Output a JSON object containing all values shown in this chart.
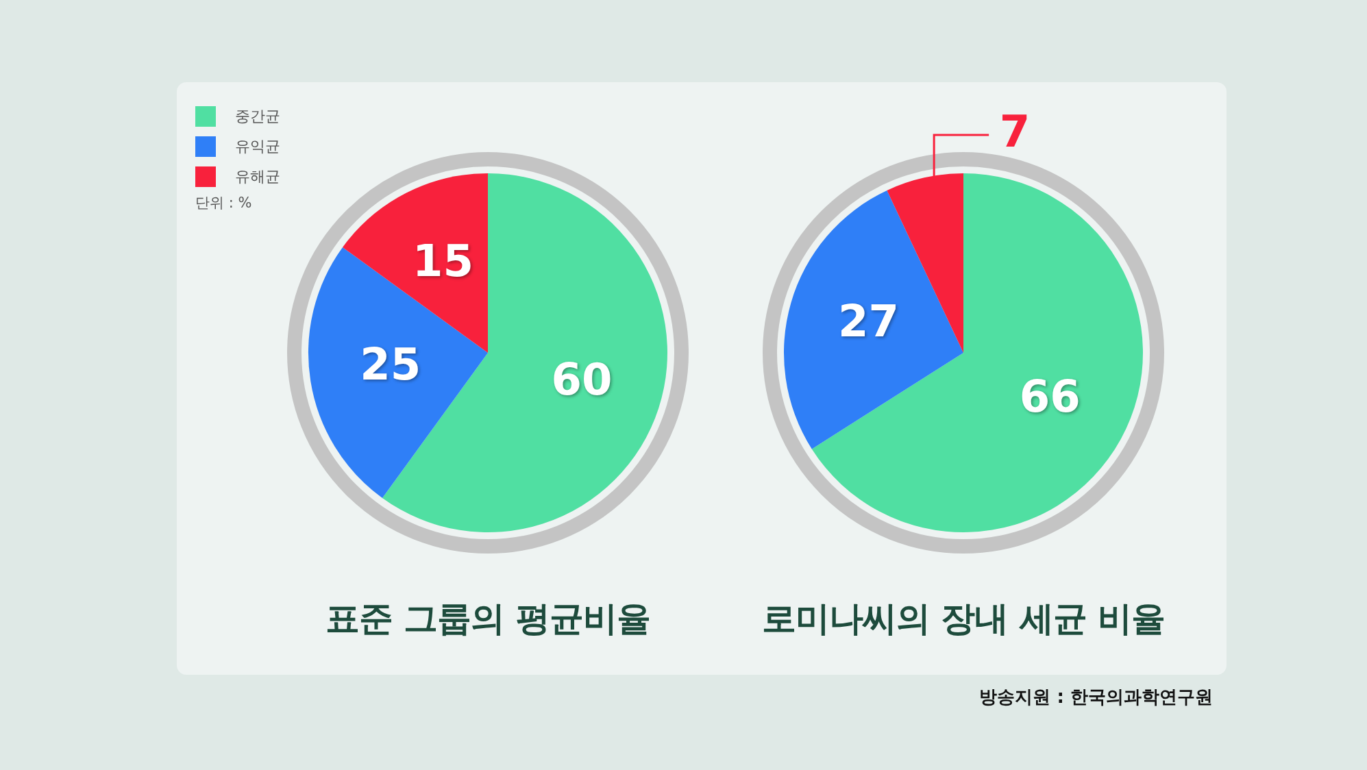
{
  "chart_data": [
    {
      "type": "pie",
      "title": "표준 그룹의 평균비율",
      "categories": [
        "중간균",
        "유익균",
        "유해균"
      ],
      "values": [
        60,
        25,
        15
      ],
      "colors": [
        "#50dfa2",
        "#2f7ff7",
        "#f8213c"
      ],
      "data_labels": true,
      "legend": "top left",
      "annotations": [
        "단위 : %"
      ]
    },
    {
      "type": "pie",
      "title": "로미나씨의 장내 세균 비율",
      "categories": [
        null,
        null,
        null
      ],
      "values": [
        66,
        27,
        7
      ],
      "colors": [
        "#50dfa2",
        "#2f7ff7",
        "#f8213c"
      ],
      "data_labels": true,
      "annotations": [
        "방송지원 : 한국의과학연구원"
      ]
    }
  ]
}
